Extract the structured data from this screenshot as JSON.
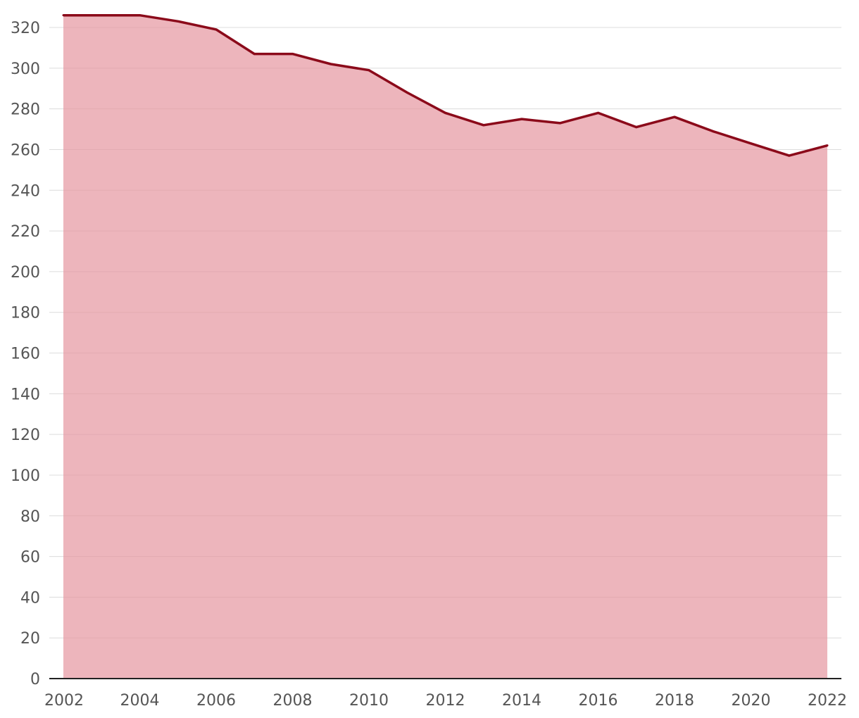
{
  "chart_data": {
    "type": "area",
    "title": "",
    "xlabel": "",
    "ylabel": "",
    "x": [
      2002,
      2003,
      2004,
      2005,
      2006,
      2007,
      2008,
      2009,
      2010,
      2011,
      2012,
      2013,
      2014,
      2015,
      2016,
      2017,
      2018,
      2019,
      2020,
      2021,
      2022
    ],
    "series": [
      {
        "values": [
          326,
          326,
          326,
          323,
          319,
          307,
          307,
          302,
          299,
          288,
          278,
          272,
          275,
          273,
          278,
          271,
          276,
          269,
          263,
          257,
          262
        ]
      }
    ],
    "xlim": [
      2002,
      2022
    ],
    "ylim": [
      0,
      320
    ],
    "x_ticks": [
      "2002",
      "2004",
      "2006",
      "2008",
      "2010",
      "2012",
      "2014",
      "2016",
      "2018",
      "2020",
      "2022"
    ],
    "y_ticks": [
      "0",
      "20",
      "40",
      "60",
      "80",
      "100",
      "120",
      "140",
      "160",
      "180",
      "200",
      "220",
      "240",
      "260",
      "280",
      "300",
      "320"
    ],
    "grid": true,
    "colors": {
      "line": "#8b0a1a",
      "fill": "#e5959f",
      "grid": "#dcdcdc",
      "axis": "#222222",
      "tick_text": "#555555"
    }
  }
}
